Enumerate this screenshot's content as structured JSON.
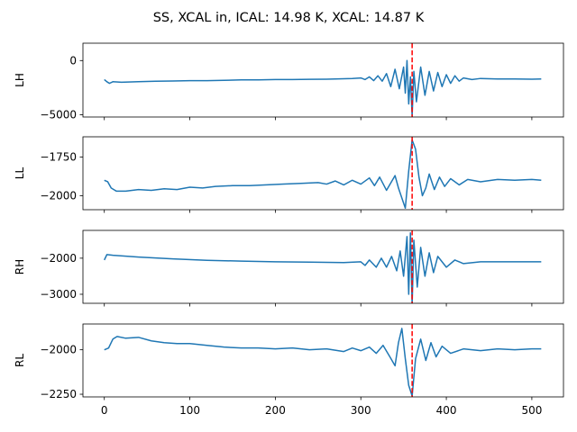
{
  "figure": {
    "title": "SS, XCAL in, ICAL: 14.98 K, XCAL: 14.87 K"
  },
  "chart_data": [
    {
      "type": "line",
      "ylabel": "LH",
      "xlim": [
        -25,
        537
      ],
      "ylim": [
        -5200,
        1600
      ],
      "yticks": [
        0,
        -5000
      ],
      "ytick_labels": [
        "0",
        "−5000"
      ],
      "xticks": [
        0,
        100,
        200,
        300,
        400,
        500
      ],
      "xtick_labels": [],
      "marker_x": 360,
      "series": [
        {
          "color": "#1f77b4",
          "points": [
            [
              0,
              -1750
            ],
            [
              3,
              -1950
            ],
            [
              6,
              -2100
            ],
            [
              10,
              -1950
            ],
            [
              20,
              -2000
            ],
            [
              40,
              -1950
            ],
            [
              60,
              -1900
            ],
            [
              80,
              -1880
            ],
            [
              100,
              -1850
            ],
            [
              120,
              -1850
            ],
            [
              140,
              -1820
            ],
            [
              160,
              -1780
            ],
            [
              180,
              -1780
            ],
            [
              200,
              -1750
            ],
            [
              220,
              -1750
            ],
            [
              240,
              -1730
            ],
            [
              260,
              -1720
            ],
            [
              280,
              -1680
            ],
            [
              290,
              -1650
            ],
            [
              300,
              -1600
            ],
            [
              305,
              -1750
            ],
            [
              310,
              -1500
            ],
            [
              315,
              -1850
            ],
            [
              320,
              -1400
            ],
            [
              325,
              -1900
            ],
            [
              330,
              -1200
            ],
            [
              335,
              -2400
            ],
            [
              340,
              -800
            ],
            [
              345,
              -2600
            ],
            [
              350,
              -600
            ],
            [
              352,
              -3000
            ],
            [
              354,
              0
            ],
            [
              356,
              -4000
            ],
            [
              358,
              -1500
            ],
            [
              360,
              -5100
            ],
            [
              362,
              -1000
            ],
            [
              365,
              -3800
            ],
            [
              370,
              -600
            ],
            [
              375,
              -3200
            ],
            [
              380,
              -1000
            ],
            [
              385,
              -2800
            ],
            [
              390,
              -1100
            ],
            [
              395,
              -2400
            ],
            [
              400,
              -1300
            ],
            [
              405,
              -2100
            ],
            [
              410,
              -1400
            ],
            [
              415,
              -1900
            ],
            [
              420,
              -1600
            ],
            [
              430,
              -1750
            ],
            [
              440,
              -1650
            ],
            [
              460,
              -1700
            ],
            [
              480,
              -1700
            ],
            [
              500,
              -1720
            ],
            [
              511,
              -1700
            ]
          ]
        }
      ]
    },
    {
      "type": "line",
      "ylabel": "LL",
      "xlim": [
        -25,
        537
      ],
      "ylim": [
        -2090,
        -1620
      ],
      "yticks": [
        -1750,
        -2000
      ],
      "ytick_labels": [
        "−1750",
        "−2000"
      ],
      "xticks": [
        0,
        100,
        200,
        300,
        400,
        500
      ],
      "xtick_labels": [],
      "marker_x": 360,
      "series": [
        {
          "color": "#1f77b4",
          "points": [
            [
              0,
              -1900
            ],
            [
              4,
              -1910
            ],
            [
              8,
              -1950
            ],
            [
              14,
              -1970
            ],
            [
              25,
              -1970
            ],
            [
              40,
              -1960
            ],
            [
              55,
              -1965
            ],
            [
              70,
              -1955
            ],
            [
              85,
              -1960
            ],
            [
              100,
              -1945
            ],
            [
              115,
              -1950
            ],
            [
              130,
              -1940
            ],
            [
              150,
              -1935
            ],
            [
              170,
              -1935
            ],
            [
              190,
              -1930
            ],
            [
              210,
              -1925
            ],
            [
              230,
              -1920
            ],
            [
              250,
              -1915
            ],
            [
              260,
              -1925
            ],
            [
              270,
              -1905
            ],
            [
              280,
              -1930
            ],
            [
              290,
              -1900
            ],
            [
              300,
              -1925
            ],
            [
              310,
              -1885
            ],
            [
              316,
              -1935
            ],
            [
              322,
              -1880
            ],
            [
              330,
              -1965
            ],
            [
              340,
              -1870
            ],
            [
              344,
              -1950
            ],
            [
              352,
              -2080
            ],
            [
              356,
              -1840
            ],
            [
              360,
              -1640
            ],
            [
              364,
              -1700
            ],
            [
              368,
              -1880
            ],
            [
              372,
              -2000
            ],
            [
              376,
              -1950
            ],
            [
              380,
              -1860
            ],
            [
              386,
              -1960
            ],
            [
              392,
              -1880
            ],
            [
              398,
              -1940
            ],
            [
              405,
              -1890
            ],
            [
              415,
              -1930
            ],
            [
              425,
              -1895
            ],
            [
              440,
              -1910
            ],
            [
              460,
              -1895
            ],
            [
              480,
              -1900
            ],
            [
              500,
              -1895
            ],
            [
              511,
              -1900
            ]
          ]
        }
      ]
    },
    {
      "type": "line",
      "ylabel": "RH",
      "xlim": [
        -25,
        537
      ],
      "ylim": [
        -3250,
        -1230
      ],
      "yticks": [
        -2000,
        -3000
      ],
      "ytick_labels": [
        "−2000",
        "−3000"
      ],
      "xticks": [
        0,
        100,
        200,
        300,
        400,
        500
      ],
      "xtick_labels": [],
      "marker_x": 360,
      "series": [
        {
          "color": "#1f77b4",
          "points": [
            [
              0,
              -2050
            ],
            [
              3,
              -1900
            ],
            [
              10,
              -1920
            ],
            [
              40,
              -1970
            ],
            [
              80,
              -2020
            ],
            [
              120,
              -2060
            ],
            [
              160,
              -2080
            ],
            [
              200,
              -2100
            ],
            [
              240,
              -2110
            ],
            [
              280,
              -2120
            ],
            [
              300,
              -2100
            ],
            [
              305,
              -2200
            ],
            [
              310,
              -2050
            ],
            [
              318,
              -2250
            ],
            [
              324,
              -2000
            ],
            [
              330,
              -2250
            ],
            [
              336,
              -1950
            ],
            [
              342,
              -2350
            ],
            [
              346,
              -1800
            ],
            [
              350,
              -2500
            ],
            [
              354,
              -1400
            ],
            [
              356,
              -3000
            ],
            [
              358,
              -1300
            ],
            [
              360,
              -3300
            ],
            [
              362,
              -1500
            ],
            [
              366,
              -2800
            ],
            [
              370,
              -1700
            ],
            [
              375,
              -2500
            ],
            [
              380,
              -1850
            ],
            [
              385,
              -2400
            ],
            [
              390,
              -1950
            ],
            [
              400,
              -2250
            ],
            [
              410,
              -2050
            ],
            [
              420,
              -2150
            ],
            [
              440,
              -2100
            ],
            [
              480,
              -2100
            ],
            [
              511,
              -2100
            ]
          ]
        }
      ]
    },
    {
      "type": "line",
      "ylabel": "RL",
      "xlim": [
        -25,
        537
      ],
      "ylim": [
        -2265,
        -1855
      ],
      "yticks": [
        -2000,
        -2250
      ],
      "ytick_labels": [
        "−2000",
        "−2250"
      ],
      "xticks": [
        0,
        100,
        200,
        300,
        400,
        500
      ],
      "xtick_labels": [
        "0",
        "100",
        "200",
        "300",
        "400",
        "500"
      ],
      "marker_x": 360,
      "series": [
        {
          "color": "#1f77b4",
          "points": [
            [
              0,
              -2000
            ],
            [
              5,
              -1990
            ],
            [
              10,
              -1940
            ],
            [
              15,
              -1925
            ],
            [
              25,
              -1935
            ],
            [
              40,
              -1930
            ],
            [
              55,
              -1950
            ],
            [
              70,
              -1960
            ],
            [
              85,
              -1965
            ],
            [
              100,
              -1965
            ],
            [
              120,
              -1975
            ],
            [
              140,
              -1985
            ],
            [
              160,
              -1990
            ],
            [
              180,
              -1990
            ],
            [
              200,
              -1995
            ],
            [
              220,
              -1990
            ],
            [
              240,
              -2000
            ],
            [
              260,
              -1995
            ],
            [
              280,
              -2010
            ],
            [
              290,
              -1990
            ],
            [
              300,
              -2005
            ],
            [
              310,
              -1985
            ],
            [
              318,
              -2020
            ],
            [
              326,
              -1975
            ],
            [
              334,
              -2040
            ],
            [
              340,
              -2090
            ],
            [
              344,
              -1960
            ],
            [
              348,
              -1880
            ],
            [
              352,
              -2050
            ],
            [
              356,
              -2200
            ],
            [
              360,
              -2260
            ],
            [
              364,
              -2050
            ],
            [
              370,
              -1940
            ],
            [
              376,
              -2060
            ],
            [
              382,
              -1960
            ],
            [
              388,
              -2040
            ],
            [
              395,
              -1980
            ],
            [
              405,
              -2020
            ],
            [
              420,
              -1995
            ],
            [
              440,
              -2005
            ],
            [
              460,
              -1995
            ],
            [
              480,
              -2000
            ],
            [
              500,
              -1995
            ],
            [
              511,
              -1995
            ]
          ]
        }
      ]
    }
  ]
}
